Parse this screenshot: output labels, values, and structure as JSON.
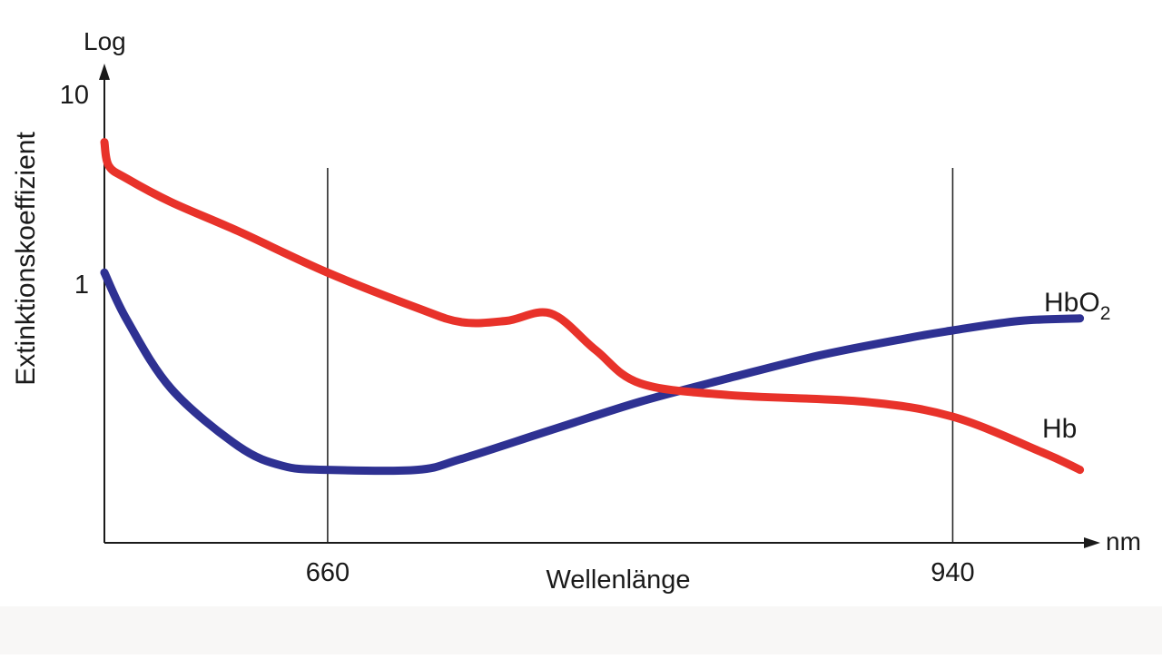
{
  "chart_data": {
    "type": "line",
    "title": "",
    "ylabel": "Extinktionskoeffizient",
    "ylabel_top": "Log",
    "xlabel": "Wellenlänge",
    "x_unit": "nm",
    "y_scale": "log",
    "ylim": [
      0.05,
      10
    ],
    "xlim": [
      560,
      1000
    ],
    "y_ticks": [
      {
        "value": 10,
        "label": "10"
      },
      {
        "value": 1,
        "label": "1"
      }
    ],
    "x_ticks": [
      {
        "value": 660,
        "label": "660"
      },
      {
        "value": 940,
        "label": "940"
      }
    ],
    "reference_lines_x": [
      660,
      940
    ],
    "series": [
      {
        "name": "Hb",
        "color": "#e8322a",
        "x": [
          560,
          562,
          570,
          590,
          620,
          660,
          700,
          720,
          740,
          760,
          780,
          800,
          840,
          900,
          940,
          980,
          997
        ],
        "y": [
          5.6,
          4.2,
          3.6,
          2.7,
          1.9,
          1.15,
          0.75,
          0.63,
          0.64,
          0.7,
          0.45,
          0.3,
          0.26,
          0.24,
          0.2,
          0.13,
          0.105
        ]
      },
      {
        "name": "HbO₂",
        "color": "#2e3192",
        "x": [
          560,
          570,
          590,
          620,
          640,
          660,
          700,
          720,
          760,
          800,
          840,
          880,
          920,
          940,
          970,
          997
        ],
        "y": [
          1.15,
          0.65,
          0.28,
          0.14,
          0.11,
          0.105,
          0.105,
          0.12,
          0.17,
          0.24,
          0.32,
          0.42,
          0.52,
          0.57,
          0.64,
          0.66
        ]
      }
    ]
  },
  "labels": {
    "hbo2_base": "HbO",
    "hbo2_sub": "2",
    "hb": "Hb"
  }
}
